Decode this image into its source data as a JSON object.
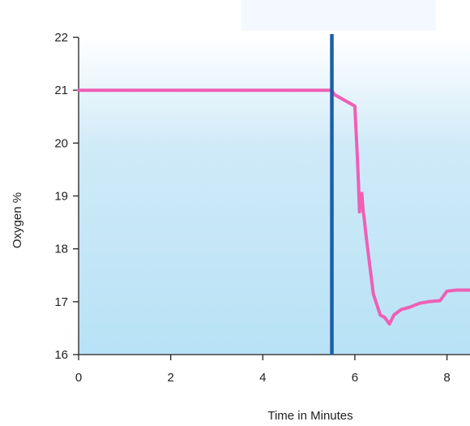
{
  "chart_data": {
    "type": "line",
    "title": "",
    "xlabel": "Time in Minutes",
    "ylabel": "Oxygen %",
    "xlim": [
      0,
      8.5
    ],
    "ylim": [
      16,
      22
    ],
    "xticks": [
      0,
      2,
      4,
      6,
      8
    ],
    "yticks": [
      16,
      17,
      18,
      19,
      20,
      21,
      22
    ],
    "grid": false,
    "legend": "none",
    "marker_x": 5.5,
    "colors": {
      "line": "#ef5fb5",
      "marker": "#1a5fa8",
      "background_top": "#ffffff",
      "background_bottom": "#b8e2f6"
    },
    "series": [
      {
        "x": [
          0,
          5.5,
          5.55,
          6.0,
          6.05,
          6.08,
          6.1,
          6.15,
          6.18,
          6.2,
          6.25,
          6.4,
          6.55,
          6.65,
          6.75,
          6.85,
          7.0,
          7.2,
          7.4,
          7.6,
          7.85,
          8.0,
          8.2,
          8.5
        ],
        "y": [
          21.0,
          21.0,
          20.92,
          20.7,
          19.8,
          19.2,
          18.7,
          19.05,
          18.7,
          18.6,
          18.2,
          17.15,
          16.75,
          16.7,
          16.58,
          16.75,
          16.85,
          16.9,
          16.97,
          17.0,
          17.02,
          17.2,
          17.22,
          17.22
        ]
      }
    ]
  }
}
